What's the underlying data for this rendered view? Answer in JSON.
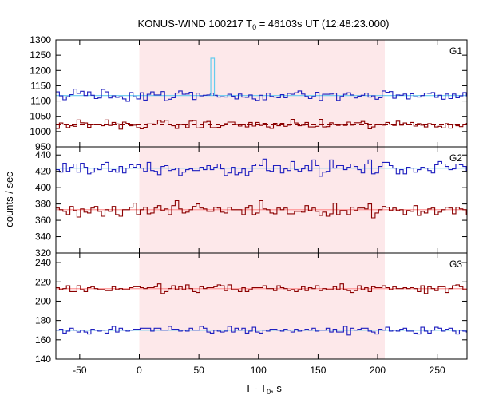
{
  "title": {
    "prefix": "KONUS-WIND 100217 T",
    "sub": "0",
    "suffix": " = 46103s UT (12:48:23.000)"
  },
  "xlabel": {
    "prefix": "T - T",
    "sub": "0",
    "suffix": ", s"
  },
  "ylabel": "counts / sec",
  "colors": {
    "red": "#8b0000",
    "blue": "#1f1fbf",
    "light_blue": "#66ccee",
    "pink_line": "#ff9999",
    "shade": "#fde8ea"
  },
  "chart_data": {
    "type": "line",
    "x_range": [
      -70,
      275
    ],
    "x_ticks": [
      -50,
      0,
      50,
      100,
      150,
      200,
      250
    ],
    "bin_width": 2.944,
    "shaded_interval": [
      0,
      206
    ],
    "panels": [
      {
        "label": "G1",
        "ylim": [
          950,
          1300
        ],
        "y_ticks": [
          950,
          1000,
          1050,
          1100,
          1150,
          1200,
          1250,
          1300
        ],
        "series": [
          {
            "name": "",
            "color": "blue",
            "mean": 1118,
            "amplitude": 26,
            "values": []
          },
          {
            "name": "",
            "color": "red",
            "mean": 1022,
            "amplitude": 22,
            "values": []
          }
        ],
        "reference_lines": [
          {
            "color": "light_blue",
            "y": 1118,
            "dashed": false
          },
          {
            "color": "red",
            "y": 1022,
            "dashed": true
          }
        ],
        "spike": {
          "color": "light_blue",
          "x_start": 60,
          "x_end": 63,
          "y": 1240
        }
      },
      {
        "label": "G2",
        "ylim": [
          320,
          450
        ],
        "y_ticks": [
          320,
          340,
          360,
          380,
          400,
          420,
          440
        ],
        "series": [
          {
            "name": "",
            "color": "blue",
            "mean": 424,
            "amplitude": 13,
            "values": []
          },
          {
            "name": "",
            "color": "red",
            "mean": 373,
            "amplitude": 12,
            "values": []
          }
        ],
        "reference_lines": [
          {
            "color": "light_blue",
            "y": 424,
            "dashed": false
          },
          {
            "color": "pink_line",
            "y": 373,
            "dashed": false
          }
        ]
      },
      {
        "label": "G3",
        "ylim": [
          140,
          250
        ],
        "y_ticks": [
          140,
          160,
          180,
          200,
          220,
          240
        ],
        "series": [
          {
            "name": "",
            "color": "red",
            "mean": 213,
            "amplitude": 7,
            "values": []
          },
          {
            "name": "",
            "color": "blue",
            "mean": 170,
            "amplitude": 6,
            "values": []
          }
        ],
        "reference_lines": [
          {
            "color": "pink_line",
            "y": 213,
            "dashed": false
          },
          {
            "color": "light_blue",
            "y": 170,
            "dashed": false
          }
        ]
      }
    ]
  }
}
